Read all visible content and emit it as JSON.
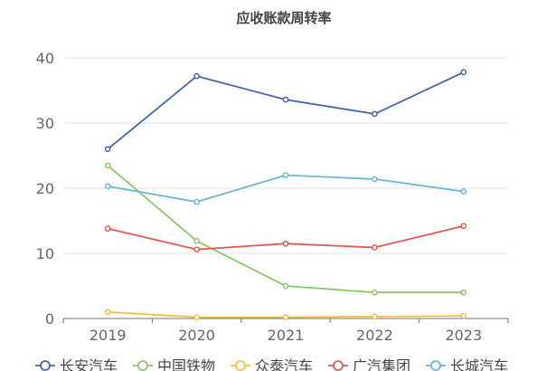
{
  "chart_data": {
    "type": "line",
    "title": "应收账款周转率",
    "categories": [
      "2019",
      "2020",
      "2021",
      "2022",
      "2023"
    ],
    "ylim": [
      0,
      40
    ],
    "yticks": [
      0,
      10,
      20,
      30,
      40
    ],
    "grid": true,
    "legend_position": "bottom",
    "series": [
      {
        "name": "长安汽车",
        "color": "#4466b0",
        "values": [
          26.0,
          37.2,
          33.6,
          31.4,
          37.8
        ]
      },
      {
        "name": "中国铁物",
        "color": "#8cc86a",
        "values": [
          23.5,
          11.9,
          5.0,
          4.0,
          4.0
        ]
      },
      {
        "name": "众泰汽车",
        "color": "#f5c042",
        "values": [
          1.0,
          0.2,
          0.2,
          0.3,
          0.4
        ]
      },
      {
        "name": "广汽集团",
        "color": "#e05a52",
        "values": [
          13.8,
          10.6,
          11.5,
          10.9,
          14.2
        ]
      },
      {
        "name": "长城汽车",
        "color": "#6ab8d6",
        "values": [
          20.3,
          17.9,
          22.0,
          21.4,
          19.5
        ]
      }
    ]
  }
}
